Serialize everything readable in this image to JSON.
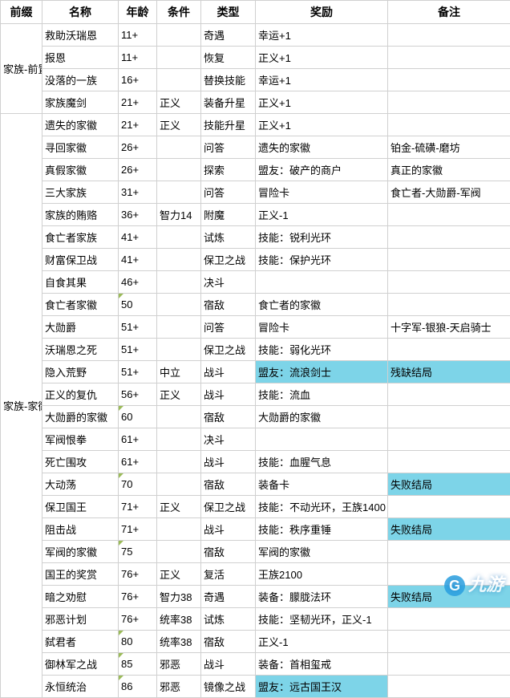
{
  "headers": [
    "前缀",
    "名称",
    "年龄",
    "条件",
    "类型",
    "奖励",
    "备注"
  ],
  "groups": [
    {
      "prefix": "家族-前置",
      "rows": [
        {
          "name": "救助沃瑞恩",
          "age": "11+",
          "cond": "",
          "type": "奇遇",
          "reward": "幸运+1",
          "note": ""
        },
        {
          "name": "报恩",
          "age": "11+",
          "cond": "",
          "type": "恢复",
          "reward": "正义+1",
          "note": ""
        },
        {
          "name": "没落的一族",
          "age": "16+",
          "cond": "",
          "type": "替换技能",
          "reward": "幸运+1",
          "note": ""
        },
        {
          "name": "家族魔剑",
          "age": "21+",
          "cond": "正义",
          "type": "装备升星",
          "reward": "正义+1",
          "note": ""
        }
      ]
    },
    {
      "prefix": "家族-家徽线",
      "rows": [
        {
          "name": "遗失的家徽",
          "age": "21+",
          "cond": "正义",
          "type": "技能升星",
          "reward": "正义+1",
          "note": ""
        },
        {
          "name": "寻回家徽",
          "age": "26+",
          "cond": "",
          "type": "问答",
          "reward": "遗失的家徽",
          "note": "铂金-硫磺-磨坊"
        },
        {
          "name": "真假家徽",
          "age": "26+",
          "cond": "",
          "type": "探索",
          "reward": "盟友：破产的商户",
          "note": "真正的家徽"
        },
        {
          "name": "三大家族",
          "age": "31+",
          "cond": "",
          "type": "问答",
          "reward": "冒险卡",
          "note": "食亡者-大勋爵-军阀"
        },
        {
          "name": "家族的贿赂",
          "age": "36+",
          "cond": "智力14",
          "type": "附魔",
          "reward": "正义-1",
          "note": ""
        },
        {
          "name": "食亡者家族",
          "age": "41+",
          "cond": "",
          "type": "试炼",
          "reward": "技能：锐利光环",
          "note": ""
        },
        {
          "name": "财富保卫战",
          "age": "41+",
          "cond": "",
          "type": "保卫之战",
          "reward": "技能：保护光环",
          "note": ""
        },
        {
          "name": "自食其果",
          "age": "46+",
          "cond": "",
          "type": "决斗",
          "reward": "",
          "note": ""
        },
        {
          "name": "食亡者家徽",
          "age": "50",
          "age_tri": true,
          "cond": "",
          "type": "宿敌",
          "reward": "食亡者的家徽",
          "note": ""
        },
        {
          "name": "大勋爵",
          "age": "51+",
          "cond": "",
          "type": "问答",
          "reward": "冒险卡",
          "note": "十字军-银狼-天启骑士"
        },
        {
          "name": "沃瑞恩之死",
          "age": "51+",
          "cond": "",
          "type": "保卫之战",
          "reward": "技能：弱化光环",
          "note": ""
        },
        {
          "name": "隐入荒野",
          "age": "51+",
          "cond": "中立",
          "type": "战斗",
          "reward": "盟友：流浪剑士",
          "reward_hl": true,
          "note": "残缺结局",
          "note_hl": true
        },
        {
          "name": "正义的复仇",
          "age": "56+",
          "cond": "正义",
          "type": "战斗",
          "reward": "技能：流血",
          "note": ""
        },
        {
          "name": "大勋爵的家徽",
          "age": "60",
          "age_tri": true,
          "cond": "",
          "type": "宿敌",
          "reward": "大勋爵的家徽",
          "note": ""
        },
        {
          "name": "军阀恨拳",
          "age": "61+",
          "cond": "",
          "type": "决斗",
          "reward": "",
          "note": ""
        },
        {
          "name": "死亡围攻",
          "age": "61+",
          "cond": "",
          "type": "战斗",
          "reward": "技能：血腥气息",
          "note": ""
        },
        {
          "name": "大动荡",
          "age": "70",
          "age_tri": true,
          "cond": "",
          "type": "宿敌",
          "reward": "装备卡",
          "note": "失败结局",
          "note_hl": true
        },
        {
          "name": "保卫国王",
          "age": "71+",
          "cond": "正义",
          "type": "保卫之战",
          "reward": "技能：不动光环，王族1400",
          "note": ""
        },
        {
          "name": "阻击战",
          "age": "71+",
          "cond": "",
          "type": "战斗",
          "reward": "技能：秩序重锤",
          "note": "失败结局",
          "note_hl": true
        },
        {
          "name": "军阀的家徽",
          "age": "75",
          "age_tri": true,
          "cond": "",
          "type": "宿敌",
          "reward": "军阀的家徽",
          "note": ""
        },
        {
          "name": "国王的奖赏",
          "age": "76+",
          "cond": "正义",
          "type": "复活",
          "reward": "王族2100",
          "note": ""
        },
        {
          "name": "暗之劝慰",
          "age": "76+",
          "cond": "智力38",
          "type": "奇遇",
          "reward": "装备：朦胧法环",
          "note": "失败结局",
          "note_hl": true
        },
        {
          "name": "邪恶计划",
          "age": "76+",
          "cond": "统率38",
          "type": "试炼",
          "reward": "技能：坚韧光环，正义-1",
          "note": ""
        },
        {
          "name": "弑君者",
          "age": "80",
          "age_tri": true,
          "cond": "统率38",
          "type": "宿敌",
          "reward": "正义-1",
          "note": ""
        },
        {
          "name": "御林军之战",
          "age": "85",
          "age_tri": true,
          "cond": "邪恶",
          "type": "战斗",
          "reward": "装备：首相玺戒",
          "note": ""
        },
        {
          "name": "永恒统治",
          "age": "86",
          "age_tri": true,
          "cond": "邪恶",
          "type": "镜像之战",
          "reward": "盟友：远古国王汉",
          "reward_hl": true,
          "note": ""
        }
      ]
    }
  ],
  "watermark": {
    "icon": "G",
    "text": "九游"
  }
}
